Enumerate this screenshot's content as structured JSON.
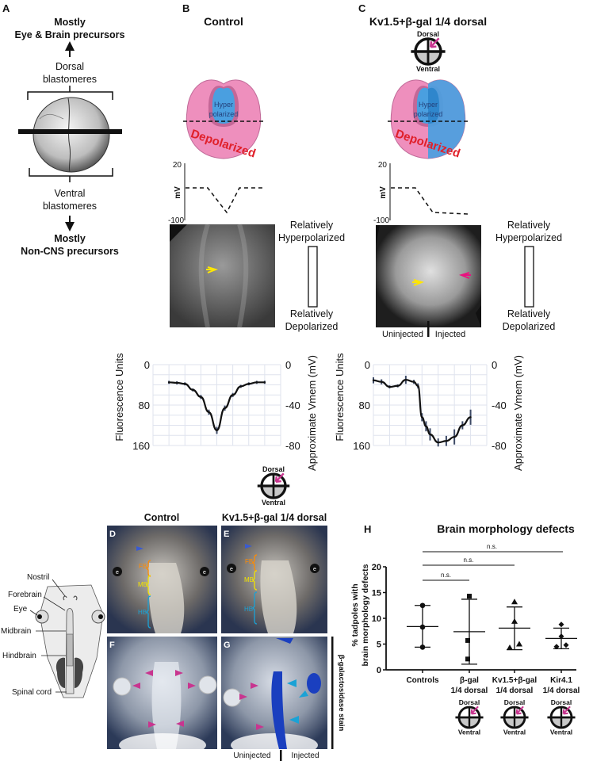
{
  "panel_labels": {
    "a": "A",
    "b": "B",
    "c": "C",
    "d": "D",
    "e": "E",
    "f": "F",
    "g": "G",
    "h": "H"
  },
  "panel_a": {
    "top_line1": "Mostly",
    "top_line2": "Eye & Brain precursors",
    "dorsal_line1": "Dorsal",
    "dorsal_line2": "blastomeres",
    "ventral_line1": "Ventral",
    "ventral_line2": "blastomeres",
    "bottom_line1": "Mostly",
    "bottom_line2": "Non-CNS precursors"
  },
  "panel_b": {
    "title": "Control",
    "hyper_line1": "Hyper",
    "hyper_line2": "polarized",
    "depol_label": "Depolarized",
    "mv_axis": {
      "label": "mV",
      "top": "20",
      "bottom": "-100"
    }
  },
  "panel_c": {
    "title": "Kv1.5+β-gal 1/4 dorsal",
    "hyper_line1": "Hyper",
    "hyper_line2": "polarized",
    "depol_label": "Depolarized",
    "mv_axis": {
      "label": "mV",
      "top": "20",
      "bottom": "-100"
    },
    "uninjected": "Uninjected",
    "injected": "Injected"
  },
  "scale_legend": {
    "top_line1": "Relatively",
    "top_line2": "Hyperpolarized",
    "bottom_line1": "Relatively",
    "bottom_line2": "Depolarized"
  },
  "orientation_icon": {
    "dorsal": "Dorsal",
    "ventral": "Ventral"
  },
  "colors": {
    "pink": "#ee8fbd",
    "blue": "#4a9fe0",
    "red": "#e0202a",
    "magenta": "#c8358f",
    "yellow": "#ffe600",
    "orange": "#ff8a00",
    "mb_yellow": "#f2e200",
    "hb_cyan": "#1aa2d6",
    "stain_blue": "#1a3fbf"
  },
  "schematic": {
    "labels": [
      "Nostril",
      "Forebrain",
      "Eye",
      "Midbrain",
      "Hindbrain",
      "Spinal cord"
    ]
  },
  "panels_dg": {
    "control_title": "Control",
    "kv_title": "Kv1.5+β-gal 1/4 dorsal",
    "eye_label": "e",
    "fb": "FB",
    "mb": "MB",
    "hb": "HB",
    "stain_label": "β-galactosidase stain",
    "uninjected": "Uninjected",
    "injected": "Injected"
  },
  "chart_data": [
    {
      "type": "line",
      "panel": "B",
      "ylabel": "Fluorescence Units",
      "ylabel_right": "Approximate Vmem (mV)",
      "yticks": [
        "0",
        "80",
        "160"
      ],
      "yticks_right": [
        "0",
        "-40",
        "-80"
      ],
      "ylim": [
        0,
        160
      ],
      "xlim": [
        0,
        8
      ],
      "grid": true,
      "x": [
        1,
        1.5,
        2,
        2.5,
        3,
        3.5,
        4,
        4.5,
        5,
        5.5,
        6,
        6.5,
        7
      ],
      "y": [
        35,
        36,
        38,
        50,
        64,
        94,
        130,
        86,
        60,
        43,
        38,
        35,
        35
      ],
      "err": [
        3,
        3,
        3,
        3,
        4,
        5,
        7,
        5,
        4,
        3,
        3,
        3,
        3
      ]
    },
    {
      "type": "line",
      "panel": "C",
      "ylabel": "Fluorescence Units",
      "ylabel_right": "Approximate Vmem (mV)",
      "yticks": [
        "0",
        "80",
        "160"
      ],
      "yticks_right": [
        "0",
        "-40",
        "-80"
      ],
      "ylim": [
        0,
        160
      ],
      "xlim": [
        0,
        7
      ],
      "grid": true,
      "x": [
        0,
        0.5,
        1,
        1.5,
        2,
        2.5,
        2.75,
        3,
        3.25,
        3.5,
        4,
        4.5,
        5,
        5.5,
        6
      ],
      "y": [
        31,
        34,
        44,
        42,
        30,
        34,
        42,
        104,
        122,
        138,
        154,
        151,
        143,
        120,
        104
      ],
      "err": [
        6,
        5,
        3,
        3,
        8,
        4,
        5,
        8,
        10,
        12,
        8,
        10,
        15,
        8,
        15
      ]
    },
    {
      "type": "scatter",
      "panel": "H",
      "title": "Brain morphology defects",
      "ylabel_line1": "% tadpoles with",
      "ylabel_line2": "brain morphology defects",
      "ylim": [
        0,
        20
      ],
      "yticks": [
        "0",
        "5",
        "10",
        "15",
        "20"
      ],
      "categories": [
        {
          "line1": "Controls",
          "line2": "",
          "marker": "circle",
          "icon": false,
          "values": [
            12.5,
            8.3,
            4.4
          ],
          "mean": 8.4,
          "sd_low": 4.4,
          "sd_high": 12.5
        },
        {
          "line1": "β-gal",
          "line2": "1/4 dorsal",
          "marker": "square",
          "icon": true,
          "values": [
            14.3,
            5.7,
            2.1
          ],
          "mean": 7.4,
          "sd_low": 1.1,
          "sd_high": 13.7
        },
        {
          "line1": "Kv1.5+β-gal",
          "line2": "1/4 dorsal",
          "marker": "triangle",
          "icon": true,
          "values": [
            13.2,
            9.4,
            4.3,
            5.0
          ],
          "mean": 8.1,
          "sd_low": 3.9,
          "sd_high": 12.2
        },
        {
          "line1": "Kir4.1",
          "line2": "1/4 dorsal",
          "marker": "diamond",
          "icon": true,
          "values": [
            8.8,
            6.5,
            4.5,
            4.8
          ],
          "mean": 6.1,
          "sd_low": 4.1,
          "sd_high": 8.1
        }
      ],
      "comparisons": [
        {
          "from": 0,
          "to": 1,
          "label": "n.s."
        },
        {
          "from": 0,
          "to": 2,
          "label": "n.s."
        },
        {
          "from": 0,
          "to": 3,
          "label": "n.s."
        }
      ]
    }
  ]
}
